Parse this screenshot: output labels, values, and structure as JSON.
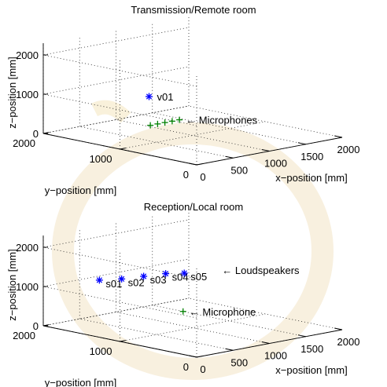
{
  "chart_data": [
    {
      "type": "scatter3d",
      "title": "Transmission/Remote room",
      "xlabel": "x−position [mm]",
      "ylabel": "y−position [mm]",
      "zlabel": "z−position [mm]",
      "xlim": [
        0,
        2000
      ],
      "ylim": [
        0,
        2000
      ],
      "zlim": [
        0,
        2000
      ],
      "x_ticks": [
        "0",
        "500",
        "1000",
        "1500",
        "2000"
      ],
      "y_ticks": [
        "0",
        "1000",
        "2000"
      ],
      "z_ticks": [
        "0",
        "1000",
        "2000"
      ],
      "grid": true,
      "series": [
        {
          "marker": "*",
          "color": "#0000ff",
          "points": [
            {
              "x": 400,
              "y": 1000,
              "z": 1200,
              "label": "v01"
            }
          ]
        },
        {
          "marker": "+",
          "color": "#008000",
          "points": [
            {
              "x": 1050,
              "y": 1600,
              "z": 0
            },
            {
              "x": 1150,
              "y": 1600,
              "z": 0
            },
            {
              "x": 1250,
              "y": 1600,
              "z": 0
            },
            {
              "x": 1350,
              "y": 1600,
              "z": 0
            },
            {
              "x": 1450,
              "y": 1600,
              "z": 0
            }
          ]
        }
      ],
      "annotations": [
        {
          "text": "← Microphones",
          "at": [
            1450,
            1600,
            0
          ]
        }
      ]
    },
    {
      "type": "scatter3d",
      "title": "Reception/Local room",
      "xlabel": "x−position [mm]",
      "ylabel": "y−position [mm]",
      "zlabel": "z−position [mm]",
      "xlim": [
        0,
        2000
      ],
      "ylim": [
        0,
        2000
      ],
      "zlim": [
        0,
        2000
      ],
      "x_ticks": [
        "0",
        "500",
        "1000",
        "1500",
        "2000"
      ],
      "y_ticks": [
        "0",
        "1000",
        "2000"
      ],
      "z_ticks": [
        "0",
        "1000",
        "2000"
      ],
      "grid": true,
      "series": [
        {
          "marker": "*",
          "color": "#0000ff",
          "points": [
            {
              "x": 350,
              "y": 1600,
              "z": 1200,
              "label": "s01"
            },
            {
              "x": 550,
              "y": 1500,
              "z": 1200,
              "label": "s02"
            },
            {
              "x": 800,
              "y": 1450,
              "z": 1200,
              "label": "s03"
            },
            {
              "x": 1050,
              "y": 1400,
              "z": 1200,
              "label": "s04"
            },
            {
              "x": 1200,
              "y": 1300,
              "z": 1200,
              "label": "s05"
            }
          ]
        },
        {
          "marker": "+",
          "color": "#008000",
          "points": [
            {
              "x": 1500,
              "y": 1600,
              "z": 0
            }
          ]
        }
      ],
      "annotations": [
        {
          "text": "← Loudspeakers",
          "at": [
            1200,
            1300,
            1200
          ]
        },
        {
          "text": "← Microphone",
          "at": [
            1500,
            1600,
            0
          ]
        }
      ]
    }
  ]
}
